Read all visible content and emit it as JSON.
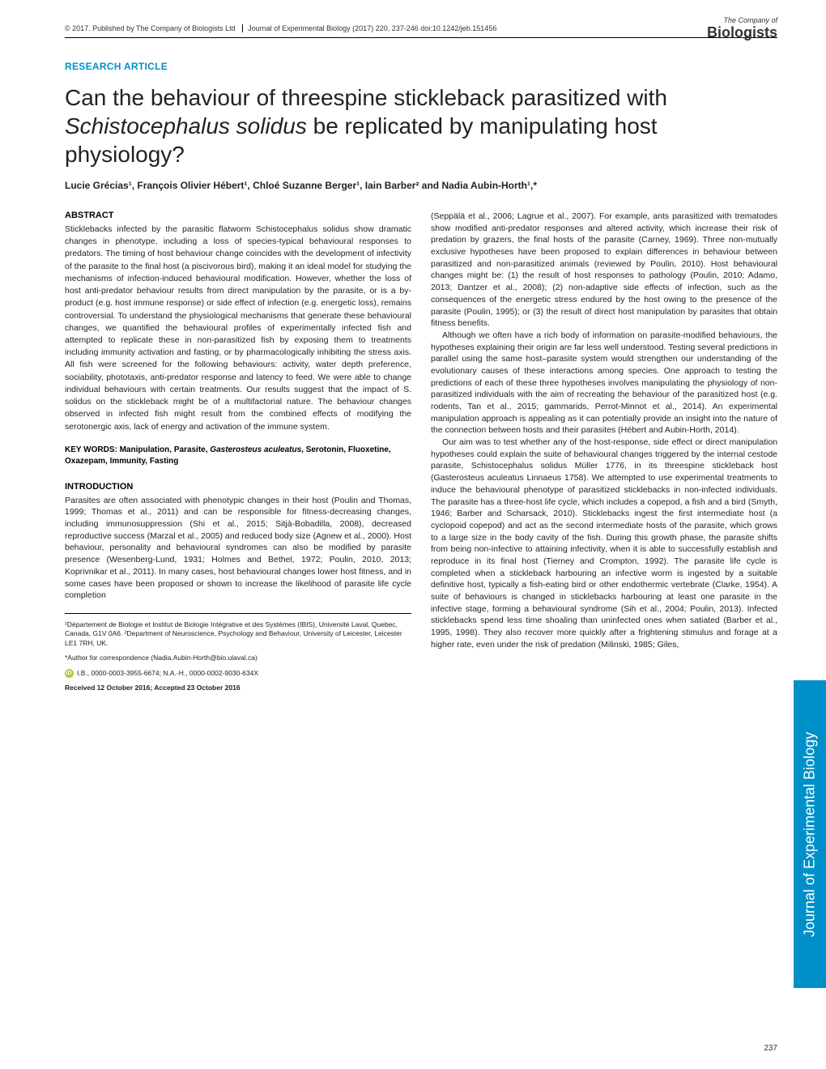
{
  "header": {
    "copyright": "© 2017. Published by The Company of Biologists Ltd",
    "journal": "Journal of Experimental Biology (2017) 220, 237-246 doi:10.1242/jeb.151456"
  },
  "logo": {
    "top": "The Company of",
    "bottom": "Biologists"
  },
  "article_type": "RESEARCH ARTICLE",
  "title_part1": "Can the behaviour of threespine stickleback parasitized with ",
  "title_italic": "Schistocephalus solidus",
  "title_part2": " be replicated by manipulating host physiology?",
  "authors": "Lucie Grécias¹, François Olivier Hébert¹, Chloé Suzanne Berger¹, Iain Barber² and Nadia Aubin-Horth¹,*",
  "abstract_heading": "ABSTRACT",
  "abstract_text": "Sticklebacks infected by the parasitic flatworm Schistocephalus solidus show dramatic changes in phenotype, including a loss of species-typical behavioural responses to predators. The timing of host behaviour change coincides with the development of infectivity of the parasite to the final host (a piscivorous bird), making it an ideal model for studying the mechanisms of infection-induced behavioural modification. However, whether the loss of host anti-predator behaviour results from direct manipulation by the parasite, or is a by-product (e.g. host immune response) or side effect of infection (e.g. energetic loss), remains controversial. To understand the physiological mechanisms that generate these behavioural changes, we quantified the behavioural profiles of experimentally infected fish and attempted to replicate these in non-parasitized fish by exposing them to treatments including immunity activation and fasting, or by pharmacologically inhibiting the stress axis. All fish were screened for the following behaviours: activity, water depth preference, sociability, phototaxis, anti-predator response and latency to feed. We were able to change individual behaviours with certain treatments. Our results suggest that the impact of S. solidus on the stickleback might be of a multifactorial nature. The behaviour changes observed in infected fish might result from the combined effects of modifying the serotonergic axis, lack of energy and activation of the immune system.",
  "keywords_label": "KEY WORDS: Manipulation, Parasite, ",
  "keywords_italic": "Gasterosteus aculeatus",
  "keywords_rest": ", Serotonin, Fluoxetine, Oxazepam, Immunity, Fasting",
  "intro_heading": "INTRODUCTION",
  "intro_text": "Parasites are often associated with phenotypic changes in their host (Poulin and Thomas, 1999; Thomas et al., 2011) and can be responsible for fitness-decreasing changes, including immunosuppression (Shi et al., 2015; Sitjà-Bobadilla, 2008), decreased reproductive success (Marzal et al., 2005) and reduced body size (Agnew et al., 2000). Host behaviour, personality and behavioural syndromes can also be modified by parasite presence (Wesenberg-Lund, 1931; Holmes and Bethel, 1972; Poulin, 2010, 2013; Koprivnikar et al., 2011). In many cases, host behavioural changes lower host fitness, and in some cases have been proposed or shown to increase the likelihood of parasite life cycle completion",
  "col2_p1": "(Seppälä et al., 2006; Lagrue et al., 2007). For example, ants parasitized with trematodes show modified anti-predator responses and altered activity, which increase their risk of predation by grazers, the final hosts of the parasite (Carney, 1969). Three non-mutually exclusive hypotheses have been proposed to explain differences in behaviour between parasitized and non-parasitized animals (reviewed by Poulin, 2010). Host behavioural changes might be: (1) the result of host responses to pathology (Poulin, 2010; Adamo, 2013; Dantzer et al., 2008); (2) non-adaptive side effects of infection, such as the consequences of the energetic stress endured by the host owing to the presence of the parasite (Poulin, 1995); or (3) the result of direct host manipulation by parasites that obtain fitness benefits.",
  "col2_p2": "Although we often have a rich body of information on parasite-modified behaviours, the hypotheses explaining their origin are far less well understood. Testing several predictions in parallel using the same host–parasite system would strengthen our understanding of the evolutionary causes of these interactions among species. One approach to testing the predictions of each of these three hypotheses involves manipulating the physiology of non-parasitized individuals with the aim of recreating the behaviour of the parasitized host (e.g. rodents, Tan et al., 2015; gammarids, Perrot-Minnot et al., 2014). An experimental manipulation approach is appealing as it can potentially provide an insight into the nature of the connection between hosts and their parasites (Hébert and Aubin-Horth, 2014).",
  "col2_p3": "Our aim was to test whether any of the host-response, side effect or direct manipulation hypotheses could explain the suite of behavioural changes triggered by the internal cestode parasite, Schistocephalus solidus Müller 1776, in its threespine stickleback host (Gasterosteus aculeatus Linnaeus 1758). We attempted to use experimental treatments to induce the behavioural phenotype of parasitized sticklebacks in non-infected individuals. The parasite has a three-host life cycle, which includes a copepod, a fish and a bird (Smyth, 1946; Barber and Scharsack, 2010). Sticklebacks ingest the first intermediate host (a cyclopoid copepod) and act as the second intermediate hosts of the parasite, which grows to a large size in the body cavity of the fish. During this growth phase, the parasite shifts from being non-infective to attaining infectivity, when it is able to successfully establish and reproduce in its final host (Tierney and Crompton, 1992). The parasite life cycle is completed when a stickleback harbouring an infective worm is ingested by a suitable definitive host, typically a fish-eating bird or other endothermic vertebrate (Clarke, 1954). A suite of behaviours is changed in sticklebacks harbouring at least one parasite in the infective stage, forming a behavioural syndrome (Sih et al., 2004; Poulin, 2013). Infected sticklebacks spend less time shoaling than uninfected ones when satiated (Barber et al., 1995, 1998). They also recover more quickly after a frightening stimulus and forage at a higher rate, even under the risk of predation (Milinski, 1985; Giles,",
  "affiliations": "¹Département de Biologie et Institut de Biologie Intégrative et des Systèmes (IBIS), Université Laval, Quebec, Canada, G1V 0A6. ²Department of Neuroscience, Psychology and Behaviour, University of Leicester, Leicester LE1 7RH, UK.",
  "correspondence": "*Author for correspondence (Nadia.Aubin-Horth@bio.ulaval.ca)",
  "orcid_text": "I.B., 0000-0003-3955-6674; N.A.-H., 0000-0002-9030-634X",
  "received": "Received 12 October 2016; Accepted 23 October 2016",
  "side_tab": "Journal of Experimental Biology",
  "page_num": "237"
}
